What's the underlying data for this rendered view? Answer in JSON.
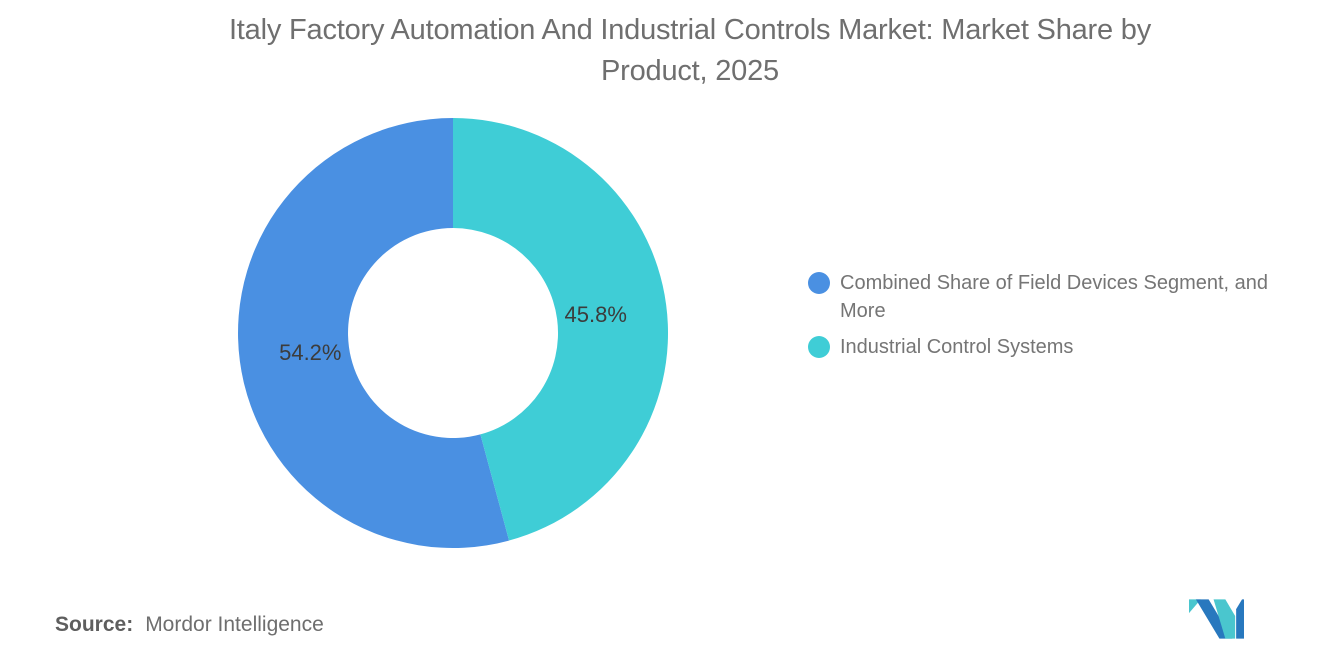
{
  "header": {
    "title_line1": "Italy Factory Automation And Industrial Controls Market: Market Share by",
    "title_line2": "Product, 2025"
  },
  "chart_data": {
    "type": "pie",
    "donut": true,
    "title": "Italy Factory Automation And Industrial Controls Market: Market Share by Product, 2025",
    "start_angle": "top",
    "direction": "counterclockwise-in-segment-order",
    "segments": [
      {
        "label": "Combined Share of Field Devices Segment, and More",
        "value": 54.2,
        "display": "54.2%",
        "color": "#4A90E2"
      },
      {
        "label": "Industrial Control Systems",
        "value": 45.8,
        "display": "45.8%",
        "color": "#3FCDD6"
      }
    ],
    "slice_label_color": "#3C3C3C",
    "legend_position": "right"
  },
  "legend": {
    "items": [
      {
        "label": "Combined Share of Field Devices Segment, and More"
      },
      {
        "label": "Industrial Control Systems"
      }
    ]
  },
  "footer": {
    "source_label": "Source:",
    "source_value": "Mordor Intelligence",
    "logo_name": "mordor-intelligence-logo",
    "logo_blue": "#2878BE",
    "logo_teal": "#4AC6CE"
  }
}
